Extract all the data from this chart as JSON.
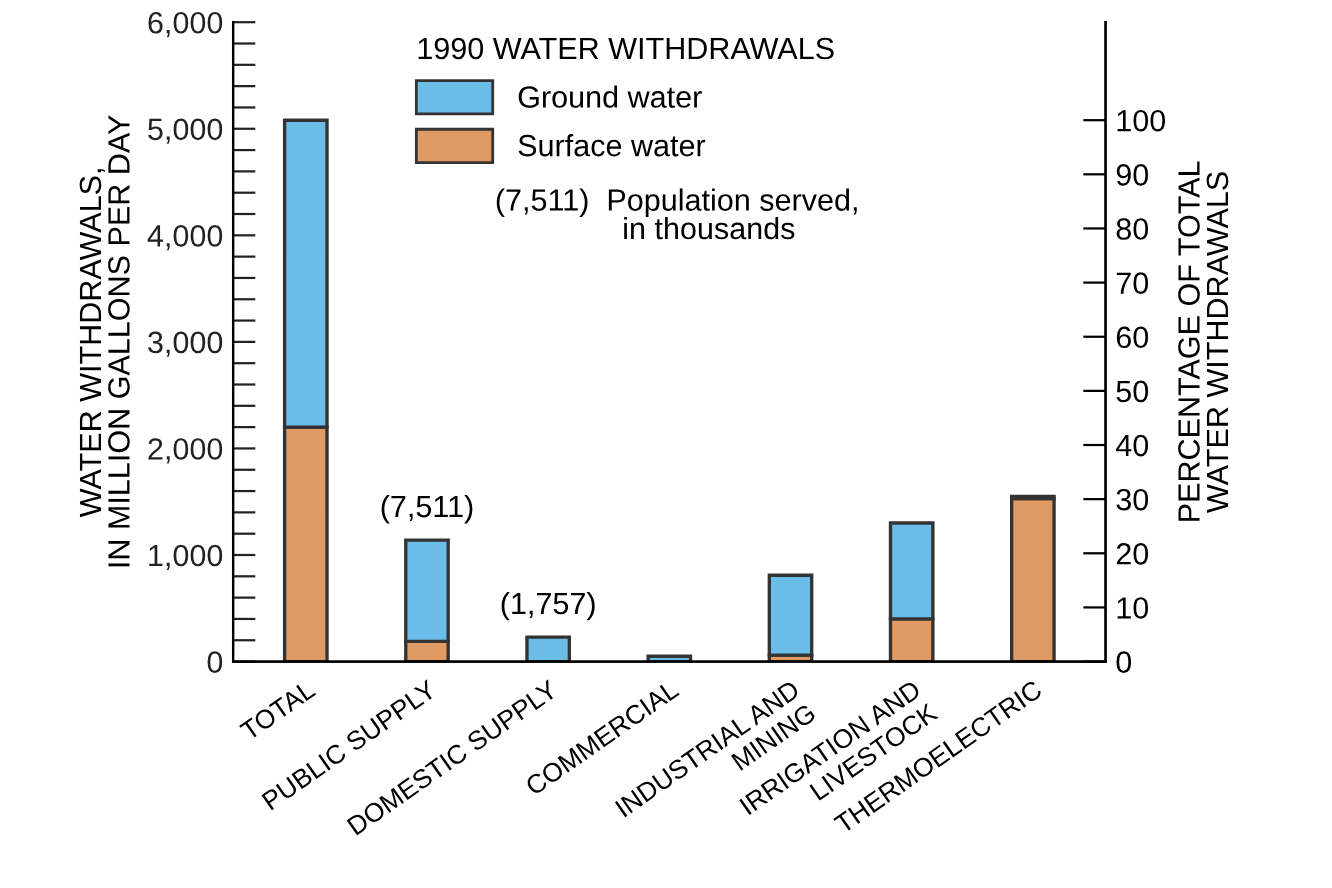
{
  "chart_data": {
    "type": "bar",
    "stacked": true,
    "xlabel": null,
    "ylabel": "WATER WITHDRAWALS,\nIN MILLION GALLONS PER DAY",
    "y2label": "PERCENTAGE OF TOTAL\nWATER WITHDRAWALS",
    "legend_title": "1990 WATER WITHDRAWALS",
    "legend": "top",
    "categories": [
      "TOTAL",
      "PUBLIC SUPPLY",
      "DOMESTIC SUPPLY",
      "COMMERCIAL",
      "INDUSTRIAL AND\nMINING",
      "IRRIGATION AND\nLIVESTOCK",
      "THERMOELECTRIC"
    ],
    "series": [
      {
        "name": "Surface water",
        "color": "#e09a64",
        "values": [
          2200,
          190,
          0,
          0,
          60,
          400,
          1530
        ]
      },
      {
        "name": "Ground water",
        "color": "#6bbce6",
        "values": [
          2880,
          950,
          230,
          50,
          750,
          900,
          20
        ]
      }
    ],
    "ylim": [
      0,
      6000
    ],
    "yticks": [
      0,
      {
        "value": 200,
        "label": null
      },
      {
        "value": 400,
        "label": null
      },
      {
        "value": 600,
        "label": null
      },
      {
        "value": 800,
        "label": null
      },
      {
        "value": 1000,
        "label": "1,000"
      },
      {
        "value": 1200,
        "label": null
      },
      {
        "value": 1400,
        "label": null
      },
      {
        "value": 1600,
        "label": null
      },
      {
        "value": 1800,
        "label": null
      },
      {
        "value": 2000,
        "label": "2,000"
      },
      {
        "value": 2200,
        "label": null
      },
      {
        "value": 2400,
        "label": null
      },
      {
        "value": 2600,
        "label": null
      },
      {
        "value": 2800,
        "label": null
      },
      {
        "value": 3000,
        "label": "3,000"
      },
      {
        "value": 3200,
        "label": null
      },
      {
        "value": 3400,
        "label": null
      },
      {
        "value": 3600,
        "label": null
      },
      {
        "value": 3800,
        "label": null
      },
      {
        "value": 4000,
        "label": "4,000"
      },
      {
        "value": 4200,
        "label": null
      },
      {
        "value": 4400,
        "label": null
      },
      {
        "value": 4600,
        "label": null
      },
      {
        "value": 4800,
        "label": null
      },
      {
        "value": 5000,
        "label": "5,000"
      },
      {
        "value": 5200,
        "label": null
      },
      {
        "value": 5400,
        "label": null
      },
      {
        "value": 5600,
        "label": null
      },
      {
        "value": 5800,
        "label": null
      },
      {
        "value": 6000,
        "label": "6,000"
      }
    ],
    "y2lim": [
      0,
      118.1
    ],
    "y2ticks": [
      0,
      10,
      20,
      30,
      40,
      50,
      60,
      70,
      80,
      90,
      100
    ],
    "grid": false,
    "annotations": [
      {
        "text": "(7,511)",
        "x": "PUBLIC SUPPLY",
        "y": 1140
      },
      {
        "text": "(1,757)",
        "x": "DOMESTIC SUPPLY",
        "y": 230
      },
      "(7,511)  Population served,\n               in thousands"
    ]
  }
}
